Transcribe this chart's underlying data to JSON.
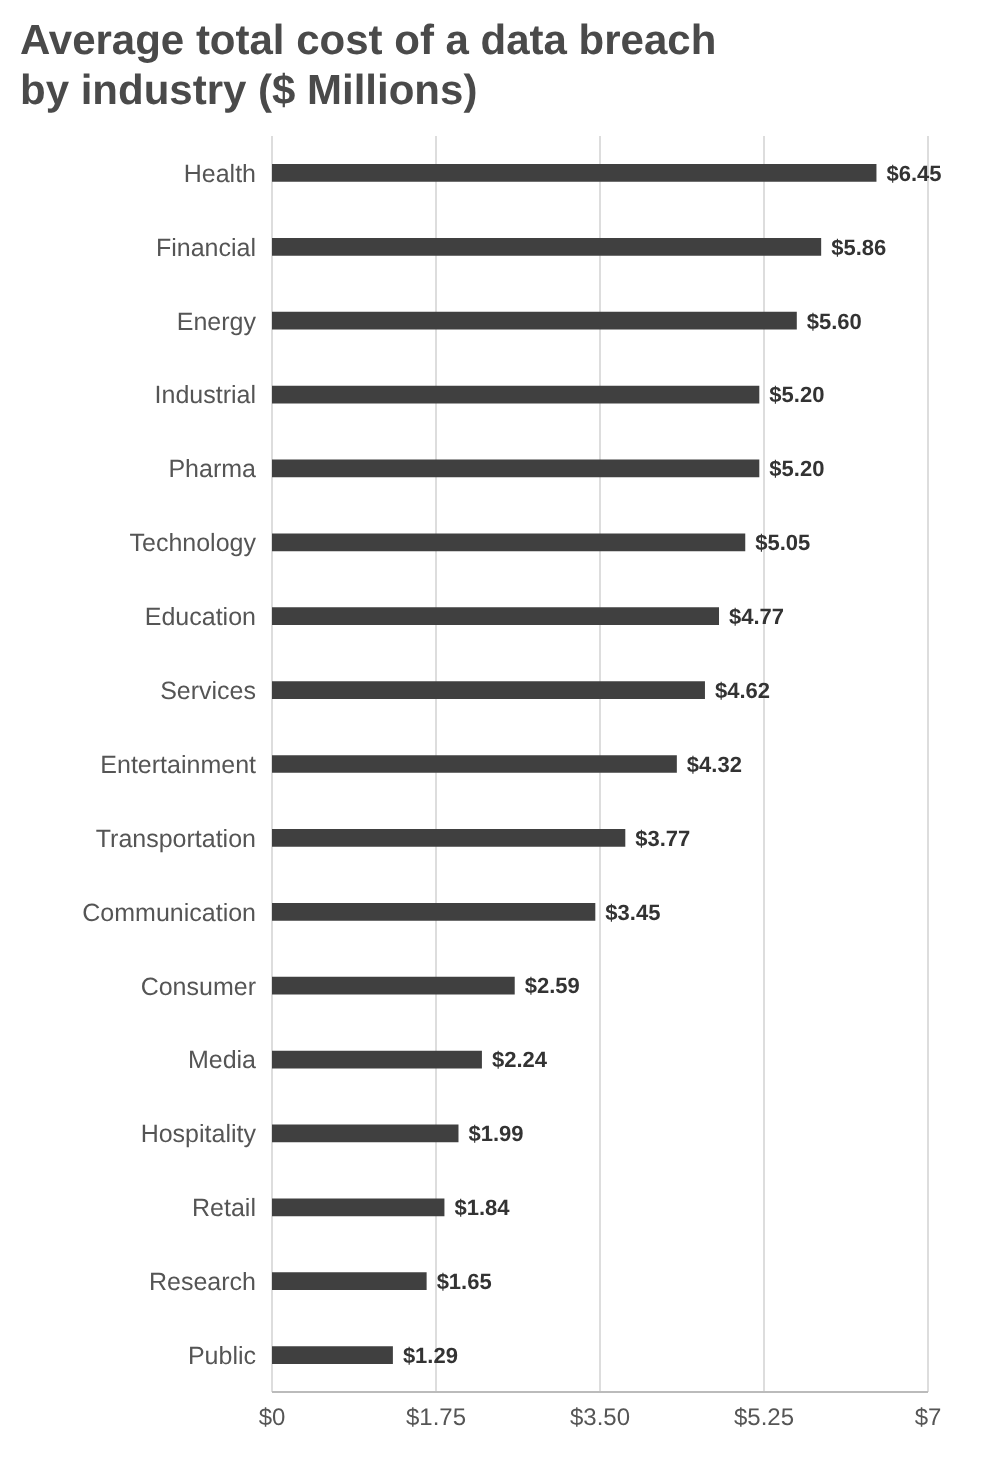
{
  "chart_data": {
    "type": "bar",
    "orientation": "horizontal",
    "title": "Average total cost of a data breach by industry ($ Millions)",
    "categories": [
      "Health",
      "Financial",
      "Energy",
      "Industrial",
      "Pharma",
      "Technology",
      "Education",
      "Services",
      "Entertainment",
      "Transportation",
      "Communication",
      "Consumer",
      "Media",
      "Hospitality",
      "Retail",
      "Research",
      "Public"
    ],
    "values": [
      6.45,
      5.86,
      5.6,
      5.2,
      5.2,
      5.05,
      4.77,
      4.62,
      4.32,
      3.77,
      3.45,
      2.59,
      2.24,
      1.99,
      1.84,
      1.65,
      1.29
    ],
    "value_labels": [
      "$6.45",
      "$5.86",
      "$5.60",
      "$5.20",
      "$5.20",
      "$5.05",
      "$4.77",
      "$4.62",
      "$4.32",
      "$3.77",
      "$3.45",
      "$2.59",
      "$2.24",
      "$1.99",
      "$1.84",
      "$1.65",
      "$1.29"
    ],
    "color": "#404040",
    "xlim": [
      0,
      7
    ],
    "xticks": [
      {
        "value": 0,
        "label": "$0"
      },
      {
        "value": 1.75,
        "label": "$1.75"
      },
      {
        "value": 3.5,
        "label": "$3.50"
      },
      {
        "value": 5.25,
        "label": "$5.25"
      },
      {
        "value": 7,
        "label": "$7"
      }
    ],
    "grid": "x"
  }
}
